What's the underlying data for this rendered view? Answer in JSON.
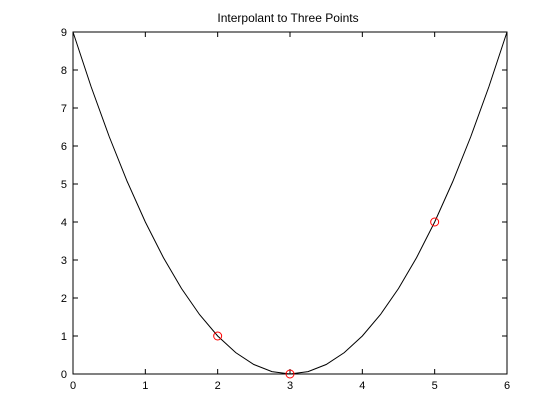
{
  "chart_data": {
    "type": "line",
    "title": "Interpolant to Three Points",
    "xlabel": "",
    "ylabel": "",
    "xlim": [
      0,
      6
    ],
    "ylim": [
      0,
      9
    ],
    "xticks": [
      0,
      1,
      2,
      3,
      4,
      5,
      6
    ],
    "yticks": [
      0,
      1,
      2,
      3,
      4,
      5,
      6,
      7,
      8,
      9
    ],
    "grid": false,
    "series": [
      {
        "kind": "line",
        "x": [
          0,
          0.25,
          0.5,
          0.75,
          1,
          1.25,
          1.5,
          1.75,
          2,
          2.25,
          2.5,
          2.75,
          3,
          3.25,
          3.5,
          3.75,
          4,
          4.25,
          4.5,
          4.75,
          5,
          5.25,
          5.5,
          5.75,
          6
        ],
        "y": [
          9,
          7.5625,
          6.25,
          5.0625,
          4,
          3.0625,
          2.25,
          1.5625,
          1,
          0.5625,
          0.25,
          0.0625,
          0,
          0.0625,
          0.25,
          0.5625,
          1,
          1.5625,
          2.25,
          3.0625,
          4,
          5.0625,
          6.25,
          7.5625,
          9
        ],
        "color": "#000000"
      },
      {
        "kind": "markers",
        "marker": "circle",
        "x": [
          2,
          3,
          5
        ],
        "y": [
          1,
          0,
          4
        ],
        "color": "#ff0000"
      }
    ]
  }
}
